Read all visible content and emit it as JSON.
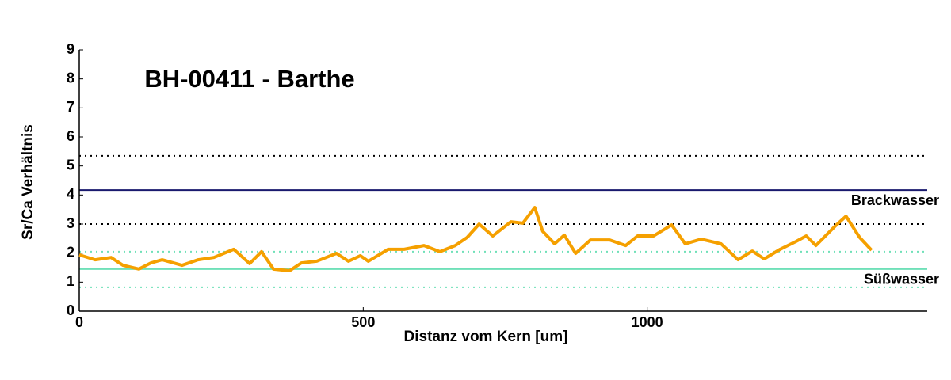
{
  "chart_data": {
    "type": "line",
    "title": "BH-00411 - Barthe",
    "x_label": "Distanz vom Kern [um]",
    "y_label": "Sr/Ca Verhältnis",
    "xlim": [
      0,
      1500
    ],
    "xticks": [
      0,
      500,
      1000
    ],
    "ylim": [
      0,
      9
    ],
    "yticks": [
      0,
      1,
      2,
      3,
      4,
      5,
      6,
      7,
      8,
      9
    ],
    "grid": false,
    "reference_lines": [
      {
        "value": 5.35,
        "color": "#000000",
        "style": "dotted"
      },
      {
        "value": 4.17,
        "color": "#1a1a6e",
        "style": "solid",
        "label": "Brackwasser"
      },
      {
        "value": 3.0,
        "color": "#000000",
        "style": "dotted"
      },
      {
        "value": 2.05,
        "color": "#6fe0b8",
        "style": "dotted"
      },
      {
        "value": 1.45,
        "color": "#6fe0b8",
        "style": "solid",
        "label": "Süßwasser"
      },
      {
        "value": 0.82,
        "color": "#6fe0b8",
        "style": "dotted"
      }
    ],
    "series": [
      {
        "color": "#f5a000",
        "x": [
          0,
          28,
          56,
          77,
          105,
          126,
          146,
          181,
          209,
          237,
          272,
          300,
          321,
          342,
          370,
          391,
          418,
          453,
          474,
          495,
          509,
          544,
          572,
          607,
          635,
          662,
          683,
          704,
          728,
          760,
          781,
          802,
          816,
          837,
          854,
          874,
          900,
          934,
          962,
          983,
          1011,
          1043,
          1067,
          1095,
          1130,
          1160,
          1185,
          1206,
          1234,
          1262,
          1280,
          1297,
          1332,
          1350,
          1374,
          1395
        ],
        "values": [
          1.94,
          1.77,
          1.85,
          1.58,
          1.45,
          1.66,
          1.77,
          1.58,
          1.77,
          1.85,
          2.13,
          1.64,
          2.05,
          1.45,
          1.39,
          1.66,
          1.72,
          1.99,
          1.72,
          1.91,
          1.72,
          2.13,
          2.13,
          2.26,
          2.05,
          2.26,
          2.54,
          3.0,
          2.59,
          3.08,
          3.03,
          3.57,
          2.75,
          2.32,
          2.62,
          1.99,
          2.45,
          2.45,
          2.26,
          2.59,
          2.59,
          2.97,
          2.32,
          2.48,
          2.32,
          1.77,
          2.07,
          1.8,
          2.13,
          2.4,
          2.59,
          2.26,
          2.95,
          3.27,
          2.54,
          2.1
        ]
      }
    ]
  }
}
